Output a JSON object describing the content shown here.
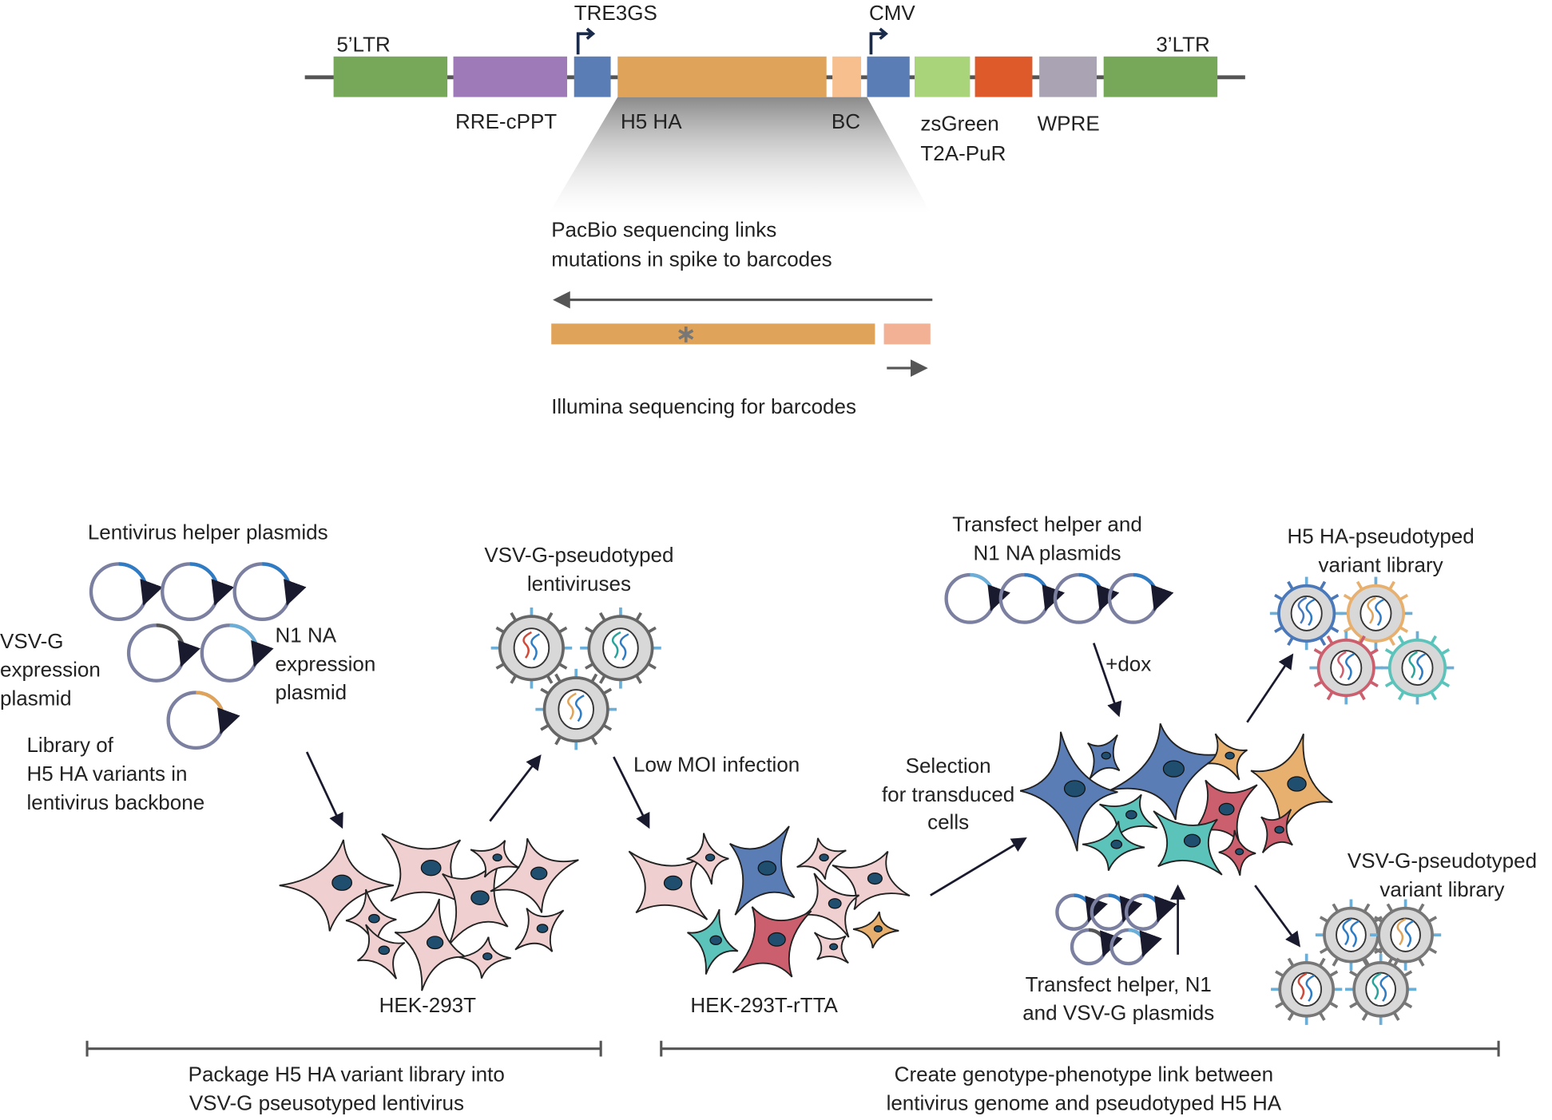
{
  "construct": {
    "segments": [
      {
        "label": "5’LTR"
      },
      {
        "label": "RRE-cPPT"
      },
      {
        "label": "TRE3GS"
      },
      {
        "label": "H5 HA"
      },
      {
        "label": "BC"
      },
      {
        "label": "CMV"
      },
      {
        "label": "zsGreen"
      },
      {
        "label": "T2A-PuR"
      },
      {
        "label": "WPRE"
      },
      {
        "label": "3’LTR"
      }
    ]
  },
  "sequencing": {
    "pacbio": [
      "PacBio sequencing links",
      "mutations in spike to barcodes"
    ],
    "illumina": "Illumina sequencing for barcodes"
  },
  "workflow": {
    "helper_plasmids": "Lentivirus helper plasmids",
    "vsvg_plasmid": [
      "VSV-G",
      "expression",
      "plasmid"
    ],
    "n1na_plasmid": [
      "N1 NA",
      "expression",
      "plasmid"
    ],
    "library": [
      "Library of",
      "H5 HA variants in",
      "lentivirus backbone"
    ],
    "vsvg_lentiviruses": [
      "VSV-G-pseudotyped",
      "lentiviruses"
    ],
    "low_moi": "Low MOI infection",
    "hek293t": "HEK-293T",
    "hek293t_rtta": "HEK-293T-rTTA",
    "selection": [
      "Selection",
      "for transduced",
      "cells"
    ],
    "transfect_top": [
      "Transfect helper and",
      "N1 NA plasmids"
    ],
    "dox": "+dox",
    "h5_library": [
      "H5 HA-pseudotyped",
      "variant library"
    ],
    "vsvg_library": [
      "VSV-G-pseudotyped",
      "variant library"
    ],
    "transfect_bottom": [
      "Transfect helper, N1",
      "and VSV-G plasmids"
    ]
  },
  "timeline": {
    "left": [
      "Package H5 HA variant library into",
      "VSV-G pseusotyped lentivirus"
    ],
    "right": [
      "Create genotype-phenotype link between",
      "lentivirus genome and pseudotyped H5 HA"
    ]
  }
}
